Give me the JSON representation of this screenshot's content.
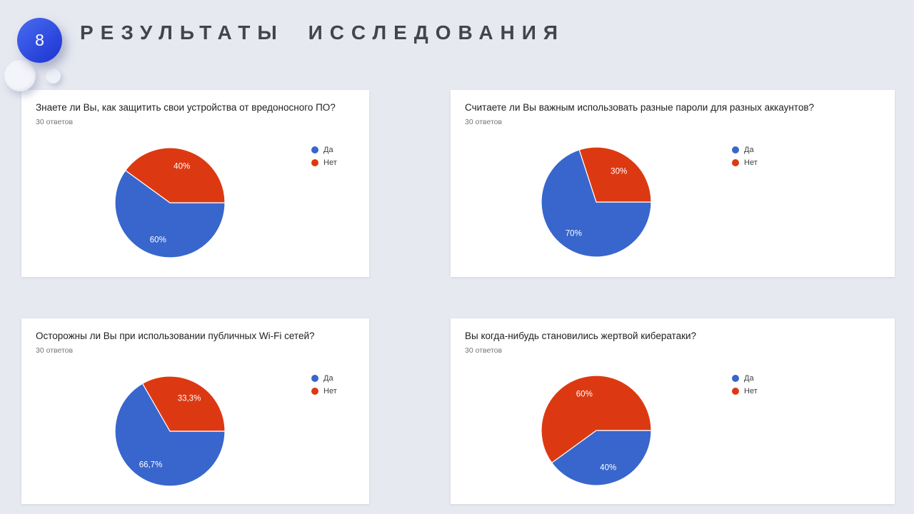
{
  "slide": {
    "number": "8",
    "title": "РЕЗУЛЬТАТЫ ИССЛЕДОВАНИЯ"
  },
  "palette": {
    "yes_color": "#3866CC",
    "no_color": "#DC3912",
    "badge_color": "#2E4BE0",
    "background_color": "#E7E9F1"
  },
  "chart_data": [
    {
      "type": "pie",
      "title": "Знаете ли Вы, как защитить свои устройства от вредоносного ПО?",
      "subtitle": "30 ответов",
      "labels": [
        "Да",
        "Нет"
      ],
      "values": [
        60,
        40
      ],
      "slice_labels": [
        "60%",
        "40%"
      ],
      "colors": [
        "#3866CC",
        "#DC3912"
      ],
      "legend_position": "right",
      "start_angle_deg": 0,
      "direction": "clockwise"
    },
    {
      "type": "pie",
      "title": "Считаете ли Вы важным использовать разные пароли для разных аккаунтов?",
      "subtitle": "30 ответов",
      "labels": [
        "Да",
        "Нет"
      ],
      "values": [
        70,
        30
      ],
      "slice_labels": [
        "70%",
        "30%"
      ],
      "colors": [
        "#3866CC",
        "#DC3912"
      ],
      "legend_position": "right",
      "start_angle_deg": 0,
      "direction": "clockwise"
    },
    {
      "type": "pie",
      "title": "Осторожны ли Вы при использовании публичных Wi-Fi сетей?",
      "subtitle": "30 ответов",
      "labels": [
        "Да",
        "Нет"
      ],
      "values": [
        66.7,
        33.3
      ],
      "slice_labels": [
        "66,7%",
        "33,3%"
      ],
      "colors": [
        "#3866CC",
        "#DC3912"
      ],
      "legend_position": "right",
      "start_angle_deg": 0,
      "direction": "clockwise"
    },
    {
      "type": "pie",
      "title": "Вы когда-нибудь становились жертвой кибератаки?",
      "subtitle": "30 ответов",
      "labels": [
        "Да",
        "Нет"
      ],
      "values": [
        40,
        60
      ],
      "slice_labels": [
        "40%",
        "60%"
      ],
      "colors": [
        "#3866CC",
        "#DC3912"
      ],
      "legend_position": "right",
      "start_angle_deg": 0,
      "direction": "clockwise"
    }
  ]
}
